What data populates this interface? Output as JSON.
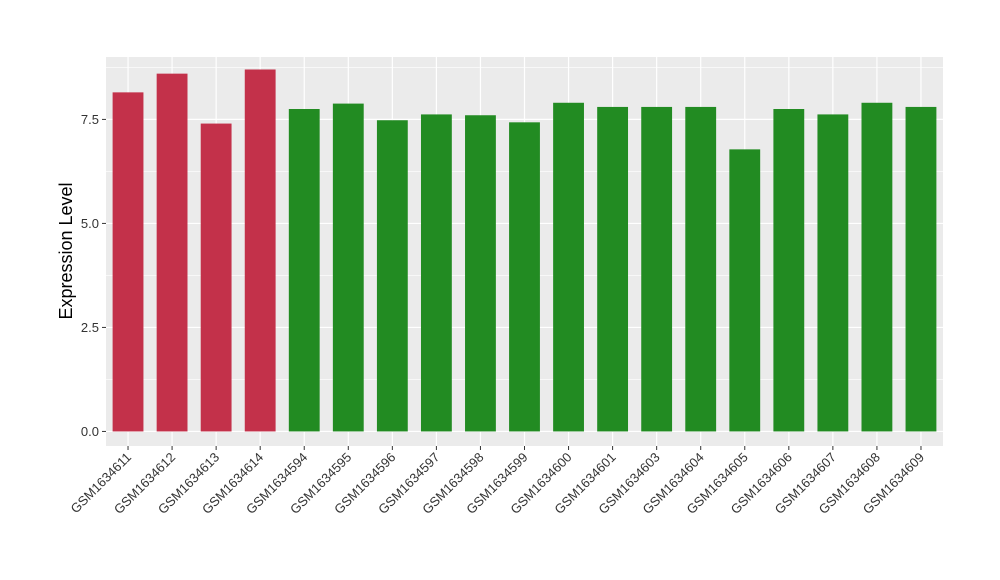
{
  "chart_data": {
    "type": "bar",
    "title": "",
    "xlabel": "",
    "ylabel": "Expression Level",
    "ylim": [
      -0.35,
      9.0
    ],
    "yticks": [
      0.0,
      2.5,
      5.0,
      7.5
    ],
    "ytick_labels": [
      "0.0",
      "2.5",
      "5.0",
      "7.5"
    ],
    "grid": true,
    "categories": [
      "GSM1634611",
      "GSM1634612",
      "GSM1634613",
      "GSM1634614",
      "GSM1634594",
      "GSM1634595",
      "GSM1634596",
      "GSM1634597",
      "GSM1634598",
      "GSM1634599",
      "GSM1634600",
      "GSM1634601",
      "GSM1634603",
      "GSM1634604",
      "GSM1634605",
      "GSM1634606",
      "GSM1634607",
      "GSM1634608",
      "GSM1634609"
    ],
    "values": [
      8.15,
      8.6,
      7.4,
      8.7,
      7.75,
      7.88,
      7.48,
      7.62,
      7.6,
      7.43,
      7.9,
      7.8,
      7.8,
      7.8,
      6.78,
      7.75,
      7.62,
      7.9,
      7.8
    ],
    "bar_colors": [
      "#c3314a",
      "#c3314a",
      "#c3314a",
      "#c3314a",
      "#228b22",
      "#228b22",
      "#228b22",
      "#228b22",
      "#228b22",
      "#228b22",
      "#228b22",
      "#228b22",
      "#228b22",
      "#228b22",
      "#228b22",
      "#228b22",
      "#228b22",
      "#228b22",
      "#228b22"
    ],
    "panel_background": "#ebebeb",
    "gridline_color": "#ffffff"
  }
}
